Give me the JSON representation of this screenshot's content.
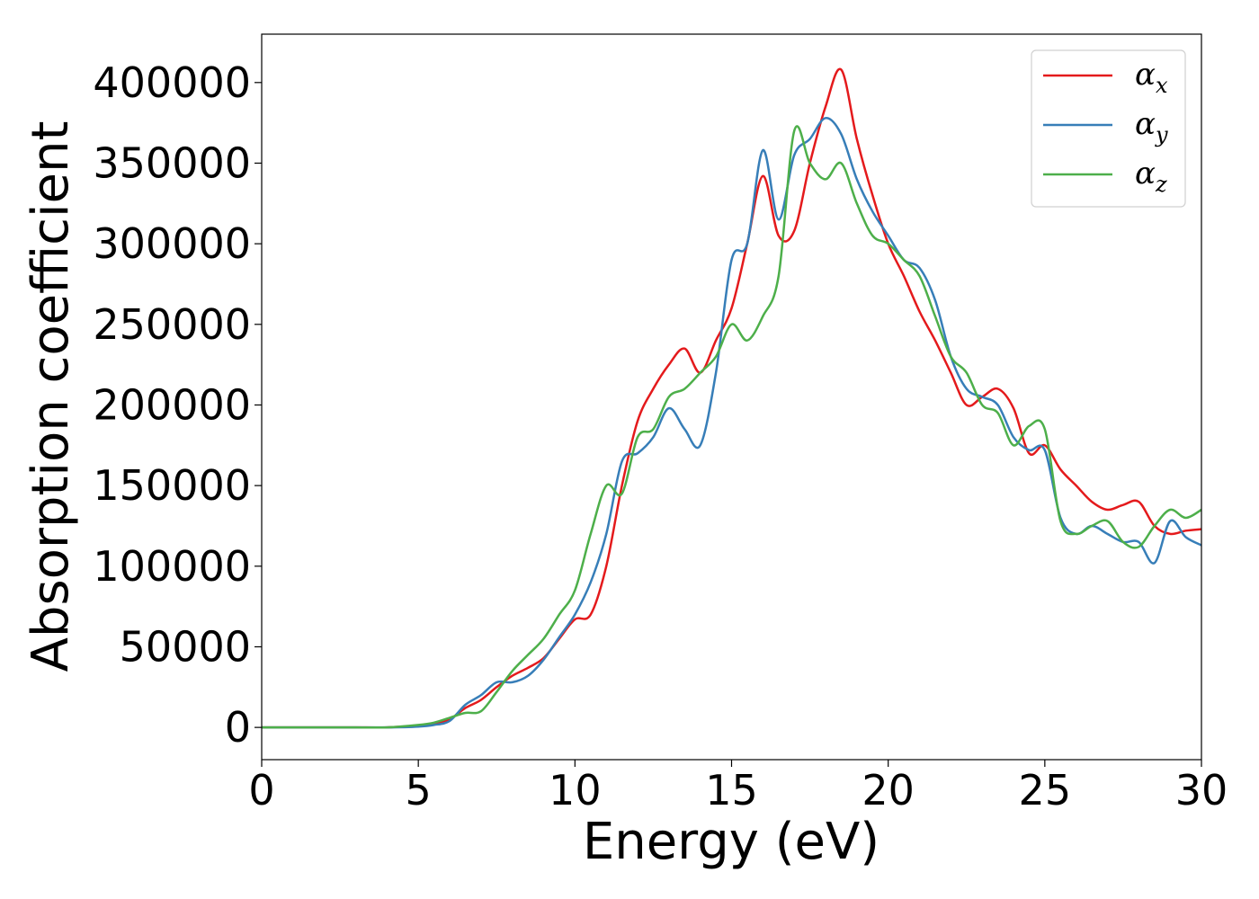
{
  "chart_data": {
    "type": "line",
    "xlabel": "Energy (eV)",
    "ylabel": "Absorption coefficient",
    "xlim": [
      0,
      30
    ],
    "ylim": [
      -20000,
      430000
    ],
    "xticks": [
      0,
      5,
      10,
      15,
      20,
      25,
      30
    ],
    "yticks": [
      0,
      50000,
      100000,
      150000,
      200000,
      250000,
      300000,
      350000,
      400000
    ],
    "xtick_labels": [
      "0",
      "5",
      "10",
      "15",
      "20",
      "25",
      "30"
    ],
    "ytick_labels": [
      "0",
      "50000",
      "100000",
      "150000",
      "200000",
      "250000",
      "300000",
      "350000",
      "400000"
    ],
    "grid": false,
    "legend_position": "top-right",
    "x": [
      0,
      1,
      2,
      3,
      4,
      5,
      5.5,
      6,
      6.5,
      7,
      7.5,
      8,
      8.5,
      9,
      9.5,
      10,
      10.5,
      11,
      11.5,
      12,
      12.5,
      13,
      13.5,
      14,
      14.5,
      15,
      15.5,
      16,
      16.5,
      17,
      17.5,
      18,
      18.5,
      19,
      19.5,
      20,
      20.5,
      21,
      21.5,
      22,
      22.5,
      23,
      23.5,
      24,
      24.5,
      25,
      25.5,
      26,
      26.5,
      27,
      27.5,
      28,
      28.5,
      29,
      29.5,
      30
    ],
    "series": [
      {
        "name_main": "α",
        "name_sub": "x",
        "color": "#e41a1c",
        "values": [
          0,
          0,
          0,
          0,
          0,
          1000,
          2000,
          5000,
          12000,
          17000,
          25000,
          32000,
          37000,
          43000,
          55000,
          67000,
          70000,
          100000,
          150000,
          190000,
          210000,
          225000,
          235000,
          220000,
          240000,
          260000,
          300000,
          342000,
          305000,
          308000,
          350000,
          385000,
          408000,
          365000,
          330000,
          300000,
          280000,
          258000,
          240000,
          220000,
          200000,
          205000,
          210000,
          198000,
          170000,
          175000,
          160000,
          150000,
          140000,
          135000,
          138000,
          140000,
          125000,
          120000,
          122000,
          123000
        ]
      },
      {
        "name_main": "α",
        "name_sub": "y",
        "color": "#377eb8",
        "values": [
          0,
          0,
          0,
          0,
          0,
          500,
          1500,
          4000,
          14000,
          20000,
          28000,
          28000,
          32000,
          42000,
          56000,
          70000,
          90000,
          120000,
          165000,
          170000,
          180000,
          198000,
          185000,
          175000,
          220000,
          290000,
          300000,
          358000,
          315000,
          355000,
          365000,
          378000,
          368000,
          340000,
          320000,
          305000,
          290000,
          285000,
          265000,
          230000,
          210000,
          205000,
          200000,
          180000,
          172000,
          172000,
          130000,
          120000,
          125000,
          120000,
          115000,
          115000,
          102000,
          128000,
          118000,
          113000
        ]
      },
      {
        "name_main": "α",
        "name_sub": "z",
        "color": "#4daf4a",
        "values": [
          0,
          0,
          0,
          0,
          0,
          1500,
          3000,
          6000,
          9000,
          10000,
          22000,
          35000,
          45000,
          55000,
          70000,
          85000,
          120000,
          150000,
          145000,
          180000,
          185000,
          205000,
          210000,
          220000,
          230000,
          250000,
          240000,
          255000,
          280000,
          370000,
          350000,
          340000,
          350000,
          325000,
          305000,
          300000,
          290000,
          280000,
          255000,
          230000,
          220000,
          200000,
          195000,
          175000,
          187000,
          185000,
          128000,
          120000,
          125000,
          128000,
          115000,
          112000,
          125000,
          135000,
          130000,
          135000
        ]
      }
    ]
  }
}
